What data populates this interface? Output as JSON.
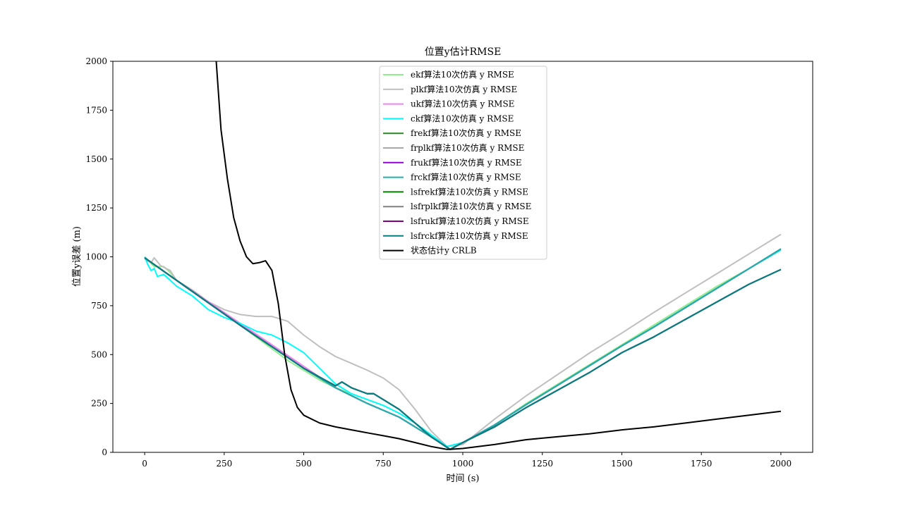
{
  "chart_data": {
    "type": "line",
    "title": "位置y估计RMSE",
    "xlabel": "时间 (s)",
    "ylabel": "位置y误差 (m)",
    "xlim": [
      -100,
      2100
    ],
    "ylim": [
      0,
      2000
    ],
    "x_ticks": [
      0,
      250,
      500,
      750,
      1000,
      1250,
      1500,
      1750,
      2000
    ],
    "y_ticks": [
      0,
      250,
      500,
      750,
      1000,
      1250,
      1500,
      1750,
      2000
    ],
    "x_tick_labels": [
      "0",
      "250",
      "500",
      "750",
      "1000",
      "1250",
      "1500",
      "1750",
      "2000"
    ],
    "y_tick_labels": [
      "0",
      "250",
      "500",
      "750",
      "1000",
      "1250",
      "1500",
      "1750",
      "2000"
    ],
    "grid": false,
    "legend_position": "upper-center",
    "series": [
      {
        "name": "ekf算法10次仿真 y RMSE",
        "color": "#90ee90",
        "x": [
          0,
          30,
          60,
          80,
          100,
          150,
          200,
          250,
          300,
          350,
          400,
          450,
          500,
          550,
          600,
          650,
          700,
          750,
          800,
          850,
          900,
          950,
          960,
          1000,
          1100,
          1200,
          1300,
          1400,
          1500,
          1600,
          1700,
          1800,
          1900,
          2000
        ],
        "y": [
          1000,
          950,
          950,
          920,
          880,
          830,
          770,
          710,
          650,
          590,
          530,
          470,
          420,
          370,
          330,
          300,
          270,
          240,
          200,
          150,
          90,
          30,
          15,
          50,
          140,
          250,
          350,
          450,
          550,
          650,
          750,
          850,
          940,
          1040
        ]
      },
      {
        "name": "plkf算法10次仿真 y RMSE",
        "color": "#bfbfbf",
        "x": [
          0,
          20,
          30,
          50,
          80,
          100,
          150,
          200,
          250,
          300,
          350,
          400,
          450,
          500,
          550,
          600,
          650,
          700,
          750,
          800,
          850,
          900,
          950,
          1000,
          1100,
          1200,
          1300,
          1400,
          1500,
          1600,
          1700,
          1800,
          1900,
          2000
        ],
        "y": [
          990,
          970,
          995,
          955,
          930,
          880,
          830,
          770,
          730,
          705,
          695,
          695,
          670,
          600,
          540,
          490,
          455,
          420,
          380,
          320,
          220,
          110,
          30,
          40,
          170,
          290,
          400,
          510,
          610,
          715,
          815,
          915,
          1015,
          1115
        ]
      },
      {
        "name": "ukf算法10次仿真 y RMSE",
        "color": "#ee82ee",
        "x": [
          0,
          100,
          200,
          300,
          400,
          500,
          600,
          700,
          800,
          900,
          960,
          1000,
          1100,
          1200,
          1300,
          1400,
          1500,
          1600,
          1700,
          1800,
          1900,
          2000
        ],
        "y": [
          995,
          880,
          770,
          660,
          550,
          440,
          330,
          250,
          180,
          80,
          15,
          50,
          140,
          245,
          345,
          445,
          545,
          640,
          740,
          840,
          940,
          1040
        ]
      },
      {
        "name": "ckf算法10次仿真 y RMSE",
        "color": "#00ffff",
        "x": [
          0,
          10,
          20,
          30,
          40,
          60,
          80,
          100,
          150,
          200,
          250,
          300,
          350,
          400,
          450,
          500,
          550,
          600,
          650,
          700,
          750,
          800,
          850,
          900,
          950,
          1000,
          1100,
          1200,
          1300,
          1400,
          1500,
          1600,
          1700,
          1800,
          1900,
          2000
        ],
        "y": [
          1000,
          960,
          930,
          940,
          900,
          910,
          880,
          850,
          800,
          730,
          690,
          660,
          620,
          600,
          560,
          510,
          430,
          350,
          300,
          270,
          240,
          200,
          150,
          90,
          30,
          50,
          140,
          245,
          345,
          445,
          545,
          640,
          740,
          840,
          940,
          1035
        ]
      },
      {
        "name": "frekf算法10次仿真 y RMSE",
        "color": "#228b22",
        "x": [
          0,
          100,
          200,
          300,
          400,
          500,
          600,
          700,
          800,
          900,
          960,
          1000,
          1100,
          1200,
          1300,
          1400,
          1500,
          1600,
          1700,
          1800,
          1900,
          2000
        ],
        "y": [
          995,
          880,
          765,
          650,
          540,
          430,
          330,
          250,
          180,
          80,
          15,
          50,
          140,
          245,
          345,
          445,
          545,
          640,
          740,
          840,
          940,
          1040
        ]
      },
      {
        "name": "frplkf算法10次仿真 y RMSE",
        "color": "#a9a9a9",
        "x": [
          0,
          100,
          200,
          300,
          400,
          500,
          600,
          700,
          800,
          900,
          960,
          1000,
          1100,
          1200,
          1300,
          1400,
          1500,
          1600,
          1700,
          1800,
          1900,
          2000
        ],
        "y": [
          995,
          880,
          765,
          650,
          540,
          430,
          330,
          250,
          180,
          80,
          15,
          50,
          140,
          245,
          345,
          445,
          545,
          640,
          740,
          840,
          940,
          1040
        ]
      },
      {
        "name": "frukf算法10次仿真 y RMSE",
        "color": "#9400d3",
        "x": [
          0,
          100,
          200,
          300,
          400,
          500,
          600,
          700,
          800,
          900,
          960,
          1000,
          1100,
          1200,
          1300,
          1400,
          1500,
          1600,
          1700,
          1800,
          1900,
          2000
        ],
        "y": [
          995,
          880,
          765,
          650,
          540,
          430,
          330,
          250,
          180,
          80,
          15,
          50,
          140,
          245,
          345,
          445,
          545,
          640,
          740,
          840,
          940,
          1040
        ]
      },
      {
        "name": "frckf算法10次仿真 y RMSE",
        "color": "#20b2aa",
        "x": [
          0,
          100,
          200,
          300,
          400,
          500,
          600,
          700,
          800,
          900,
          960,
          1000,
          1100,
          1200,
          1300,
          1400,
          1500,
          1600,
          1700,
          1800,
          1900,
          2000
        ],
        "y": [
          995,
          880,
          765,
          650,
          540,
          430,
          330,
          250,
          180,
          80,
          15,
          50,
          140,
          245,
          345,
          445,
          545,
          640,
          740,
          840,
          940,
          1040
        ]
      },
      {
        "name": "lsfrekf算法10次仿真 y RMSE",
        "color": "#008000",
        "x": [
          0,
          100,
          200,
          300,
          400,
          500,
          600,
          620,
          650,
          700,
          720,
          750,
          800,
          850,
          900,
          960,
          1000,
          1100,
          1200,
          1300,
          1400,
          1500,
          1600,
          1700,
          1800,
          1900,
          2000
        ],
        "y": [
          995,
          880,
          765,
          650,
          540,
          430,
          340,
          360,
          330,
          300,
          300,
          270,
          220,
          150,
          80,
          15,
          50,
          130,
          230,
          320,
          410,
          510,
          590,
          680,
          770,
          860,
          935
        ]
      },
      {
        "name": "lsfrplkf算法10次仿真 y RMSE",
        "color": "#808080",
        "x": [
          0,
          100,
          200,
          300,
          400,
          500,
          600,
          620,
          650,
          700,
          720,
          750,
          800,
          850,
          900,
          960,
          1000,
          1100,
          1200,
          1300,
          1400,
          1500,
          1600,
          1700,
          1800,
          1900,
          2000
        ],
        "y": [
          995,
          880,
          765,
          650,
          540,
          430,
          340,
          360,
          330,
          300,
          300,
          270,
          220,
          150,
          80,
          15,
          50,
          130,
          230,
          320,
          410,
          510,
          590,
          680,
          770,
          860,
          935
        ]
      },
      {
        "name": "lsfrukf算法10次仿真 y RMSE",
        "color": "#800080",
        "x": [
          0,
          100,
          200,
          300,
          400,
          500,
          600,
          620,
          650,
          700,
          720,
          750,
          800,
          850,
          900,
          960,
          1000,
          1100,
          1200,
          1300,
          1400,
          1500,
          1600,
          1700,
          1800,
          1900,
          2000
        ],
        "y": [
          995,
          880,
          765,
          650,
          540,
          430,
          340,
          360,
          330,
          300,
          300,
          270,
          220,
          150,
          80,
          15,
          50,
          130,
          230,
          320,
          410,
          510,
          590,
          680,
          770,
          860,
          935
        ]
      },
      {
        "name": "lsfrckf算法10次仿真 y RMSE",
        "color": "#008080",
        "x": [
          0,
          100,
          200,
          300,
          400,
          500,
          600,
          620,
          650,
          700,
          720,
          750,
          800,
          850,
          900,
          960,
          1000,
          1100,
          1200,
          1300,
          1400,
          1500,
          1600,
          1700,
          1800,
          1900,
          2000
        ],
        "y": [
          995,
          880,
          765,
          650,
          540,
          430,
          340,
          360,
          330,
          300,
          300,
          270,
          220,
          150,
          80,
          15,
          50,
          130,
          230,
          320,
          410,
          510,
          590,
          680,
          770,
          860,
          935
        ]
      },
      {
        "name": "状态估计y CRLB",
        "color": "#000000",
        "x": [
          225,
          240,
          260,
          280,
          300,
          320,
          340,
          360,
          380,
          400,
          420,
          440,
          460,
          480,
          500,
          550,
          600,
          650,
          700,
          750,
          800,
          850,
          900,
          950,
          960,
          1000,
          1100,
          1200,
          1300,
          1400,
          1500,
          1600,
          1700,
          1800,
          1900,
          2000
        ],
        "y": [
          2000,
          1650,
          1400,
          1200,
          1080,
          1000,
          965,
          970,
          980,
          930,
          760,
          500,
          320,
          230,
          190,
          150,
          130,
          115,
          100,
          85,
          70,
          50,
          30,
          15,
          15,
          20,
          40,
          65,
          80,
          95,
          115,
          130,
          150,
          170,
          190,
          210
        ]
      }
    ]
  }
}
